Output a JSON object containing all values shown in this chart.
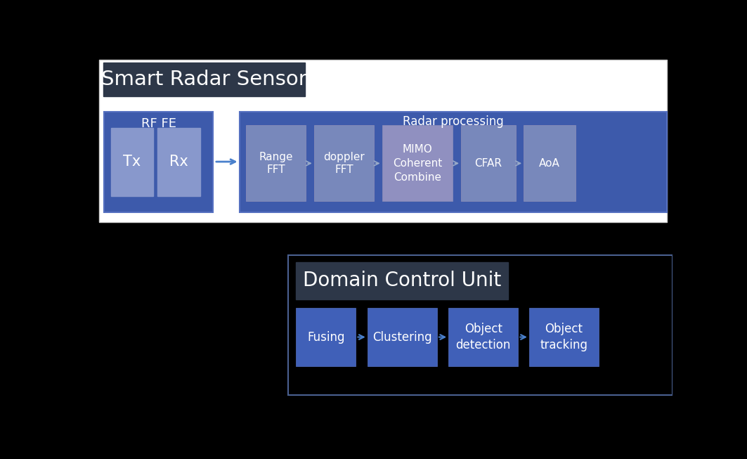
{
  "bg_color": "#000000",
  "top_panel_bg": "#ffffff",
  "title_box_color": "#2d3748",
  "text_color_white": "#ffffff",
  "text_color_dark": "#333333",
  "srs_title": "Smart Radar Sensor",
  "dcu_title": "Domain Control Unit",
  "rf_fe_box_color": "#3d5aab",
  "rf_fe_text": "RF FE",
  "rf_fe_sub_color": "#8898cc",
  "radar_proc_bg": "#3d5aab",
  "radar_proc_label": "Radar processing",
  "radar_proc_box_color": "#7888bb",
  "radar_proc_mimo_color": "#9090c0",
  "dcu_inner_border": "#4a6090",
  "dcu_box_color": "#4060b8",
  "arrow_color_main": "#4a80cc",
  "arrow_color_proc": "#99aac8"
}
